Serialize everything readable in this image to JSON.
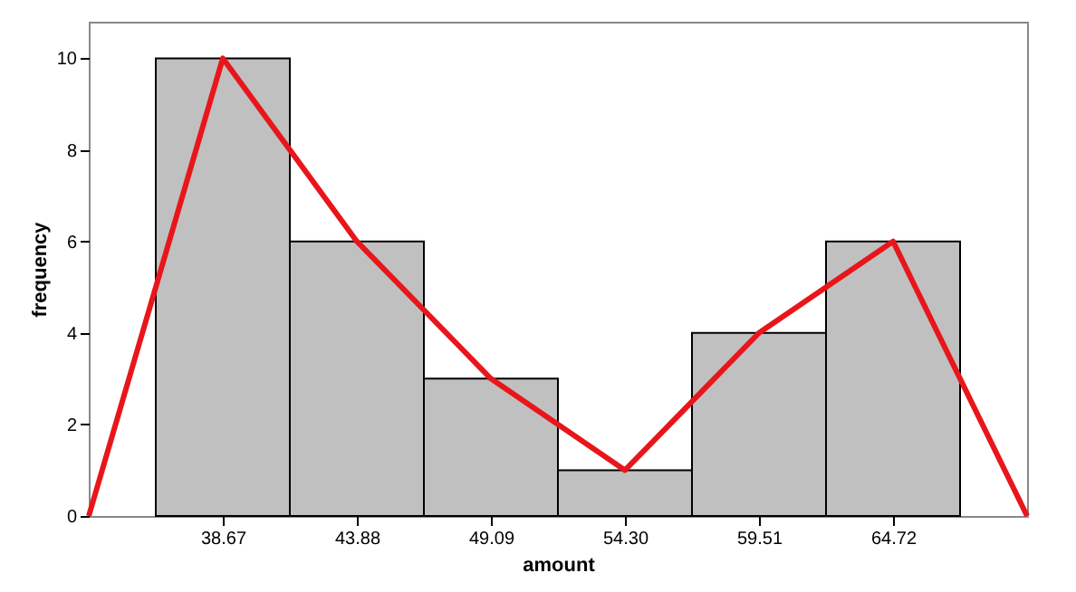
{
  "chart_data": {
    "type": "histogram",
    "xlabel": "amount",
    "ylabel": "frequency",
    "bins": [
      36.065,
      41.275,
      46.485,
      51.695,
      56.905,
      62.115,
      67.325
    ],
    "values": [
      10,
      6,
      3,
      1,
      4,
      6
    ],
    "color": "#c0c0c0",
    "series": [
      {
        "type": "line",
        "color": "#e8161b",
        "x": [
          33.46,
          38.67,
          43.88,
          49.09,
          54.3,
          59.51,
          64.72,
          69.93
        ],
        "values": [
          0,
          10,
          6,
          3,
          1,
          4,
          6,
          0
        ]
      }
    ],
    "xlim": [
      33.46,
      69.93
    ],
    "xticks": [
      38.67,
      43.88,
      49.09,
      {
        "value": 54.3,
        "label": "54.30"
      },
      59.51,
      64.72
    ],
    "ylim": [
      0,
      10.8
    ],
    "yticks": [
      0,
      2,
      4,
      6,
      8,
      10
    ],
    "grid": false,
    "marker": "none"
  }
}
